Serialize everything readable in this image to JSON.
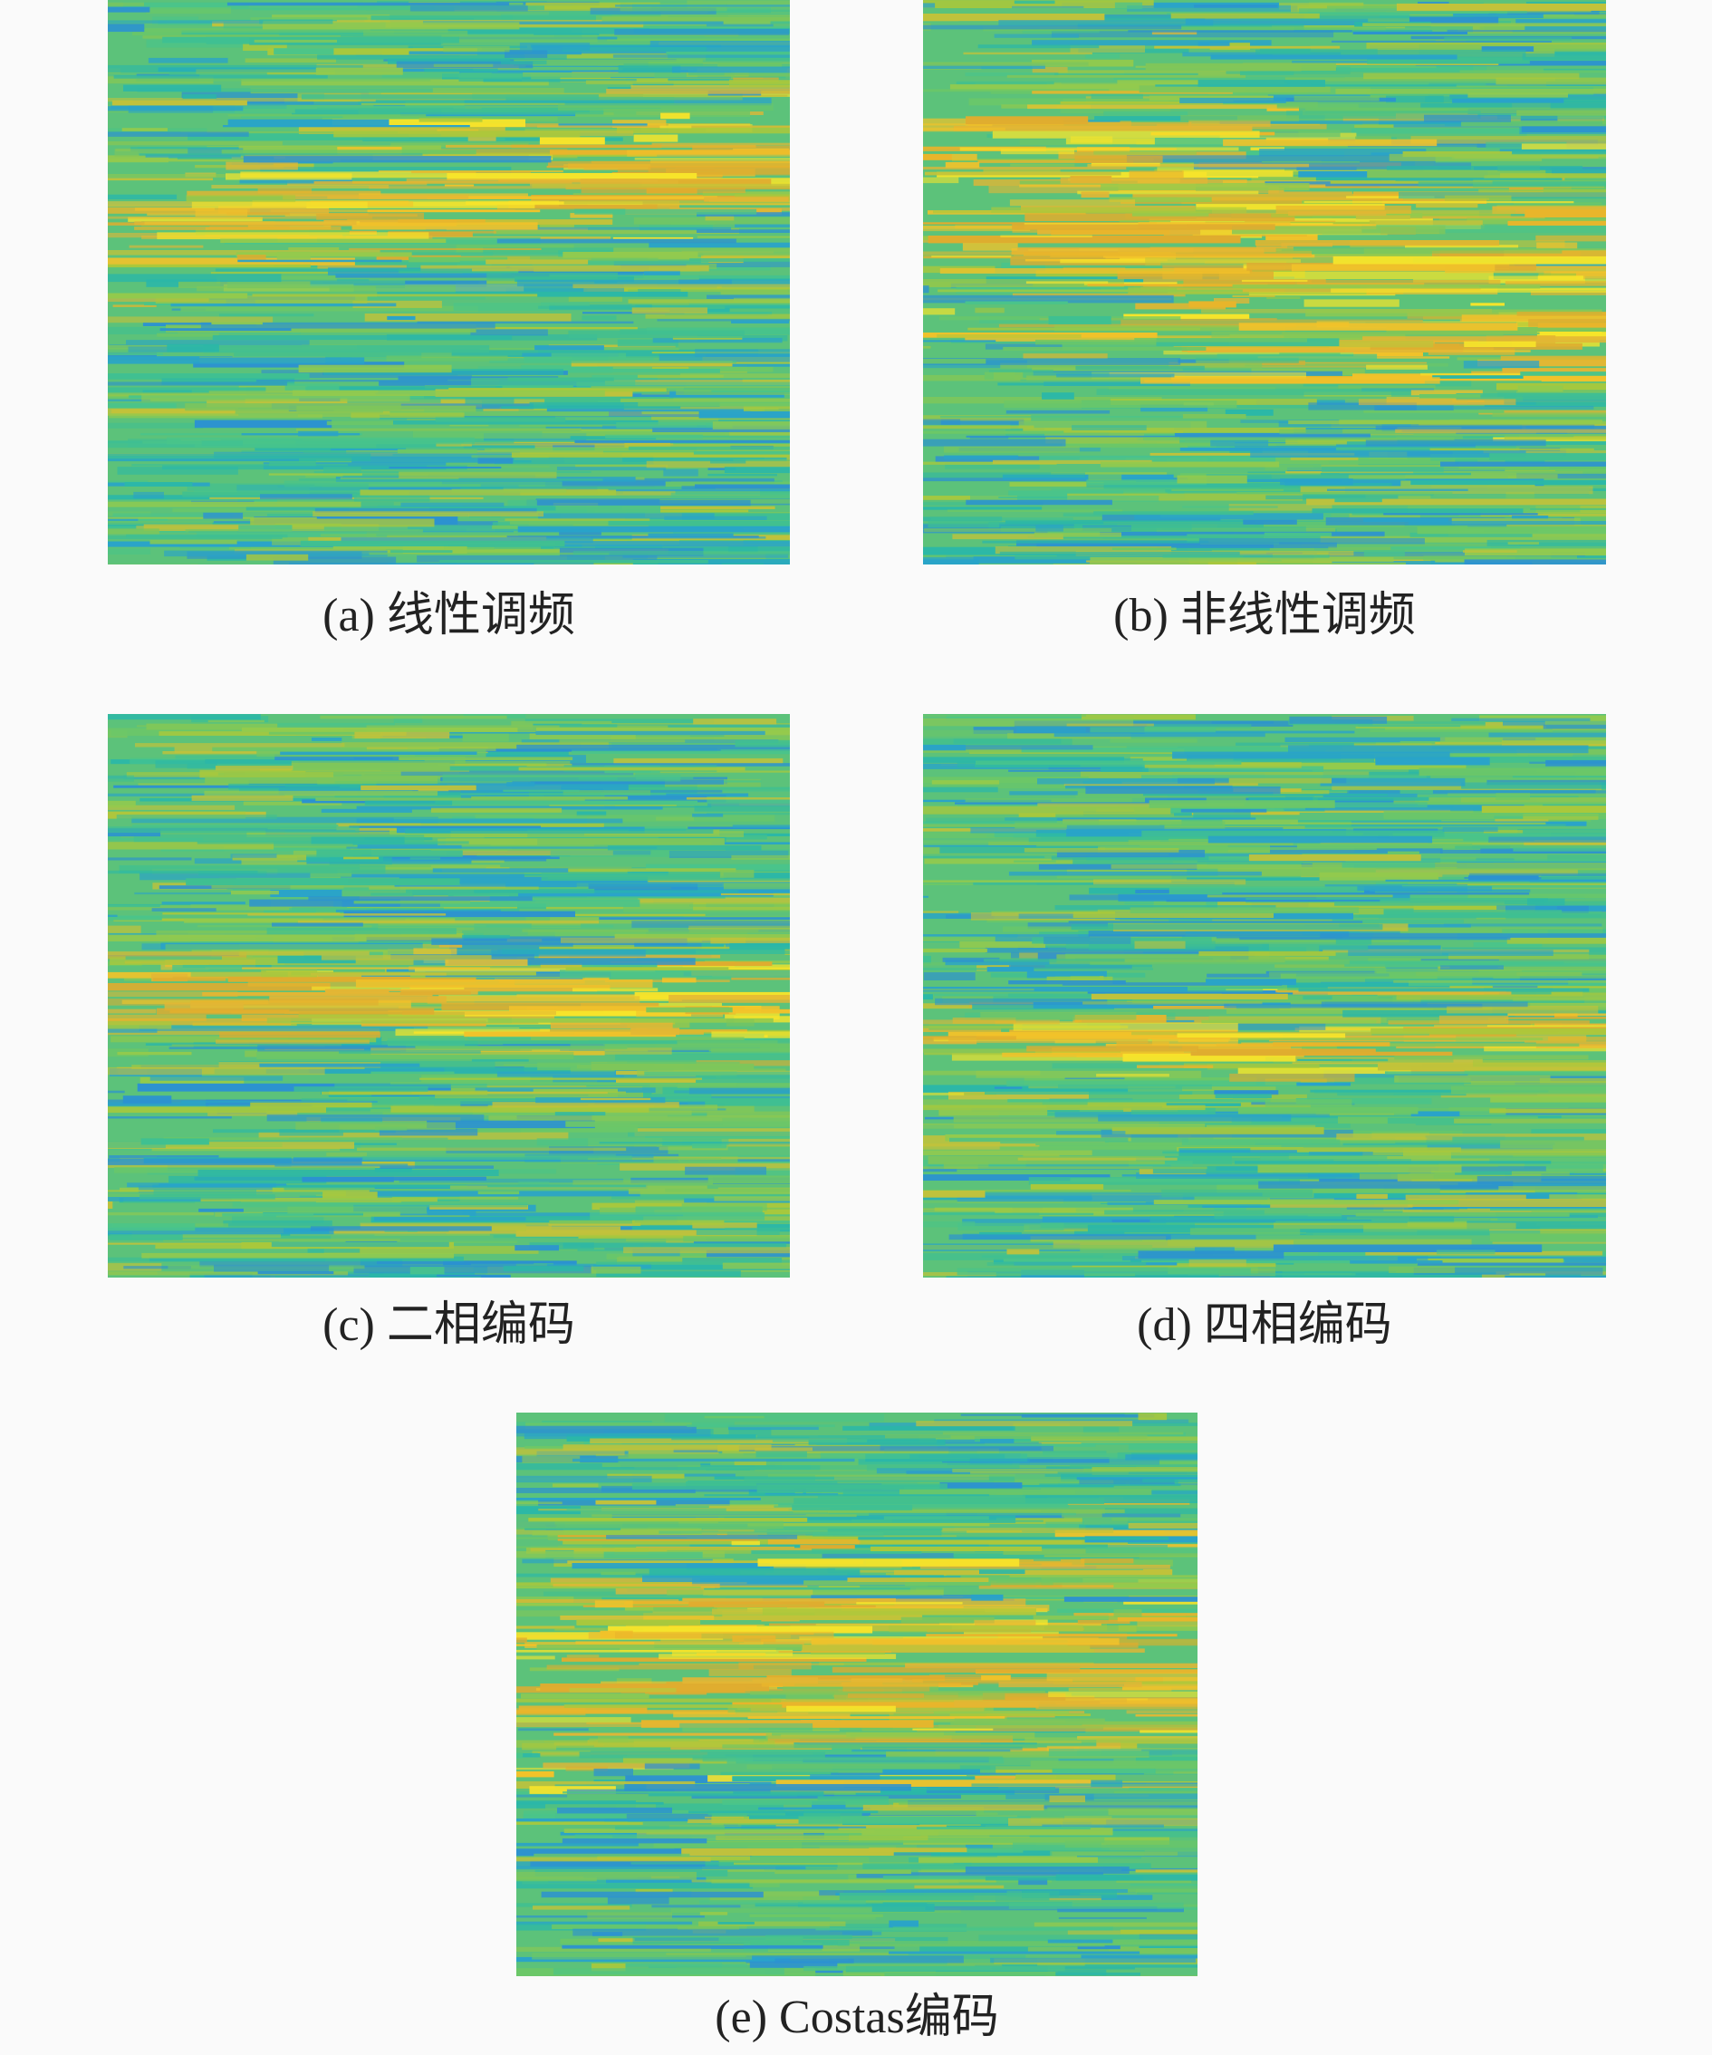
{
  "figure": {
    "panels": [
      {
        "caption": "(a) 线性调频"
      },
      {
        "caption": "(b) 非线性调频"
      },
      {
        "caption": "(c) 二相编码"
      },
      {
        "caption": "(d) 四相编码"
      },
      {
        "caption": "(e) Costas编码"
      }
    ]
  }
}
